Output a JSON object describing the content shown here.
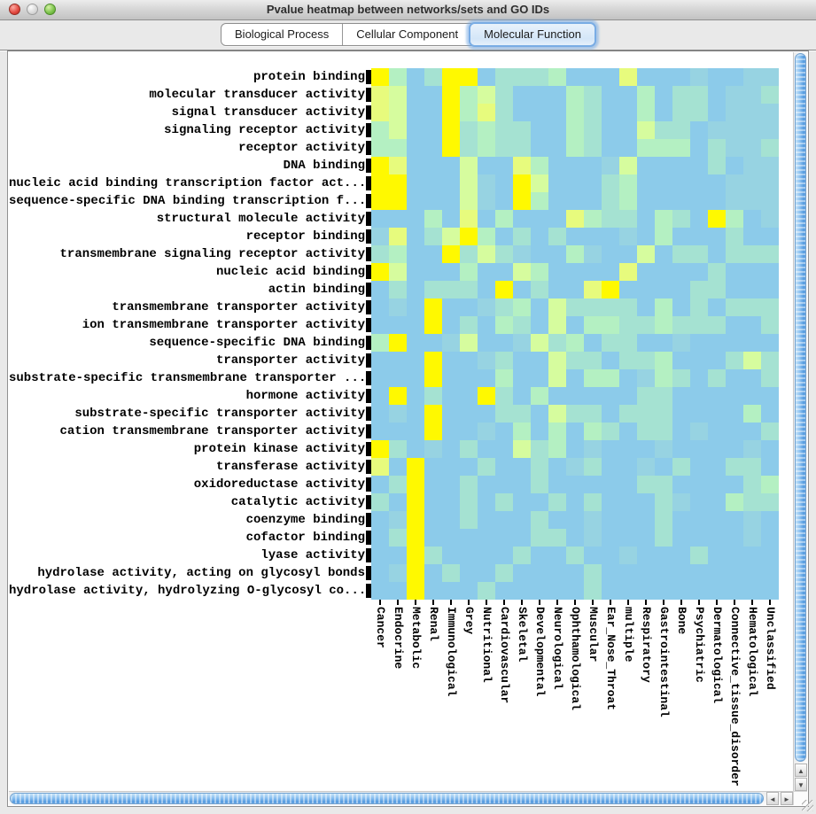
{
  "window": {
    "title": "Pvalue heatmap between networks/sets and GO IDs",
    "lights": [
      {
        "name": "close",
        "kind": "close"
      },
      {
        "name": "minimize",
        "kind": "minimize"
      },
      {
        "name": "zoom",
        "kind": "zoom"
      }
    ]
  },
  "tabs": [
    {
      "label": "Biological Process",
      "selected": false
    },
    {
      "label": "Cellular Component",
      "selected": false
    },
    {
      "label": "Molecular Function",
      "selected": true
    }
  ],
  "icons": {
    "scroll_up": "▲",
    "scroll_down": "▼",
    "scroll_left": "◄",
    "scroll_right": "►"
  },
  "chart_data": {
    "type": "heatmap",
    "title": "Pvalue heatmap between networks/sets and GO IDs",
    "rows": [
      "protein binding",
      "molecular transducer activity",
      "signal transducer activity",
      "signaling receptor activity",
      "receptor activity",
      "DNA binding",
      "nucleic acid binding transcription factor act...",
      "sequence-specific DNA binding transcription f...",
      "structural molecule activity",
      "receptor binding",
      "transmembrane signaling receptor activity",
      "nucleic acid binding",
      "actin binding",
      "transmembrane transporter activity",
      "ion transmembrane transporter activity",
      "sequence-specific DNA binding",
      "transporter activity",
      "substrate-specific transmembrane transporter ...",
      "hormone activity",
      "substrate-specific transporter activity",
      "cation transmembrane transporter activity",
      "protein kinase activity",
      "transferase activity",
      "oxidoreductase activity",
      "catalytic activity",
      "coenzyme binding",
      "cofactor binding",
      "lyase activity",
      "hydrolase activity, acting on glycosyl bonds",
      "hydrolase activity, hydrolyzing O-glycosyl co..."
    ],
    "columns": [
      "Cancer",
      "Endocrine",
      "Metabolic",
      "Renal",
      "Immunological",
      "Grey",
      "Nutritional",
      "Cardiovascular",
      "Skeletal",
      "Developmental",
      "Neurological",
      "Ophthamological",
      "Muscular",
      "Ear_Nose_Throat",
      "multiple",
      "Respiratory",
      "Gastrointestinal",
      "Bone",
      "Psychiatric",
      "Dermatological",
      "Connective_tissue_disorder",
      "Hematological",
      "Unclassified"
    ],
    "palette": [
      "#8CCBEA",
      "#97D3E2",
      "#A5E2D2",
      "#B4F0C2",
      "#D6FC9E",
      "#E7FB7D",
      "#FFF900"
    ],
    "value_scale": "0 = high p-value (blue) ... 6 = lowest p-value (yellow)",
    "grid": [
      "63026602223000500010011",
      "54006342000320030220112",
      "54006352000320030220111",
      "34006232200320042201111",
      "33006232200320033302112",
      "65000400530001400002011",
      "66000410640002300000111",
      "66000410630002300000111",
      "00030503000532203206301",
      "15024630202000103000200",
      "23006242100310040220222",
      "64000300430000500002000",
      "02022206020056000022000",
      "01060012304222203020222",
      "00060203204033223222002",
      "36001400142302200100000",
      "00060012004220223000242",
      "00060003004033013202002",
      "06020062030000022000000",
      "01060002204220222000030",
      "00060010303032022010002",
      "62010200423010001000010",
      "50600020020120010200220",
      "02600200020000022000023",
      "20600202002020002100322",
      "01600200020010002000010",
      "02600000022010002000010",
      "00620000200200100020000",
      "01602002000020000000000",
      "00600020000020000000000"
    ]
  }
}
